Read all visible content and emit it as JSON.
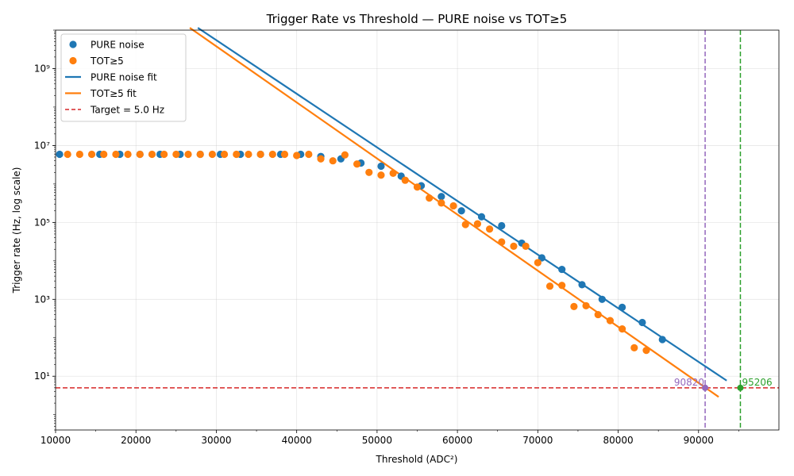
{
  "chart_data": {
    "type": "scatter",
    "title": "Trigger Rate vs Threshold — PURE noise vs TOT≥5",
    "xlabel": "Threshold (ADC²)",
    "ylabel": "Trigger rate (Hz, log scale)",
    "xlim": [
      10000,
      100000
    ],
    "ylim": [
      0.4,
      10000000000
    ],
    "yscale": "log",
    "grid": true,
    "legend_position": "top-left",
    "x_ticks": [
      10000,
      20000,
      30000,
      40000,
      50000,
      60000,
      70000,
      80000,
      90000
    ],
    "x_tick_labels": [
      "10000",
      "20000",
      "30000",
      "40000",
      "50000",
      "60000",
      "70000",
      "80000",
      "90000"
    ],
    "y_ticks": [
      10,
      1000,
      100000,
      10000000,
      1000000000
    ],
    "y_tick_labels": [
      "10¹",
      "10³",
      "10⁵",
      "10⁷",
      "10⁹"
    ],
    "series": [
      {
        "name": "PURE noise",
        "kind": "scatter",
        "color": "#1f77b4",
        "points": [
          [
            10500,
            5900000
          ],
          [
            15500,
            5900000
          ],
          [
            18000,
            5900000
          ],
          [
            20500,
            5900000
          ],
          [
            23000,
            5900000
          ],
          [
            25500,
            5900000
          ],
          [
            28000,
            5900000
          ],
          [
            30500,
            5900000
          ],
          [
            33000,
            5900000
          ],
          [
            35500,
            5900000
          ],
          [
            38000,
            5900000
          ],
          [
            40500,
            5900000
          ],
          [
            43000,
            5200000
          ],
          [
            45500,
            4500000
          ],
          [
            48000,
            3500000
          ],
          [
            50500,
            2900000
          ],
          [
            53000,
            1600000
          ],
          [
            55500,
            900000
          ],
          [
            58000,
            470000
          ],
          [
            60500,
            200000
          ],
          [
            63000,
            140000
          ],
          [
            65500,
            82000
          ],
          [
            68000,
            29000
          ],
          [
            70500,
            12000
          ],
          [
            73000,
            6000
          ],
          [
            75500,
            2400
          ],
          [
            78000,
            1000
          ],
          [
            80500,
            620
          ],
          [
            83000,
            250
          ],
          [
            85500,
            90
          ]
        ]
      },
      {
        "name": "TOT≥5",
        "kind": "scatter",
        "color": "#ff7f0e",
        "points": [
          [
            11500,
            5900000
          ],
          [
            13000,
            5900000
          ],
          [
            14500,
            5900000
          ],
          [
            16000,
            5900000
          ],
          [
            17500,
            5900000
          ],
          [
            19000,
            5900000
          ],
          [
            20500,
            5900000
          ],
          [
            22000,
            5900000
          ],
          [
            23500,
            5900000
          ],
          [
            25000,
            5900000
          ],
          [
            26500,
            5900000
          ],
          [
            28000,
            5900000
          ],
          [
            29500,
            5900000
          ],
          [
            31000,
            5900000
          ],
          [
            32500,
            5900000
          ],
          [
            34000,
            5900000
          ],
          [
            35500,
            5900000
          ],
          [
            37000,
            5900000
          ],
          [
            38500,
            5900000
          ],
          [
            40000,
            5500000
          ],
          [
            41500,
            5900000
          ],
          [
            43000,
            4500000
          ],
          [
            44500,
            4000000
          ],
          [
            46000,
            5700000
          ],
          [
            47500,
            3300000
          ],
          [
            49000,
            2000000
          ],
          [
            50500,
            1700000
          ],
          [
            52000,
            1900000
          ],
          [
            53500,
            1250000
          ],
          [
            55000,
            830000
          ],
          [
            56500,
            430000
          ],
          [
            58000,
            320000
          ],
          [
            59500,
            270000
          ],
          [
            61000,
            88000
          ],
          [
            62500,
            92000
          ],
          [
            64000,
            67000
          ],
          [
            65500,
            31000
          ],
          [
            67000,
            24000
          ],
          [
            68500,
            24000
          ],
          [
            70000,
            9000
          ],
          [
            71500,
            2200
          ],
          [
            73000,
            2300
          ],
          [
            74500,
            650
          ],
          [
            76000,
            680
          ],
          [
            77500,
            400
          ],
          [
            79000,
            280
          ],
          [
            80500,
            170
          ],
          [
            82000,
            55
          ],
          [
            83500,
            47
          ]
        ]
      },
      {
        "name": "PURE noise fit",
        "kind": "line",
        "color": "#1f77b4",
        "points": [
          [
            27700,
            11500000000
          ],
          [
            93500,
            7.7
          ]
        ]
      },
      {
        "name": "TOT≥5 fit",
        "kind": "line",
        "color": "#ff7f0e",
        "points": [
          [
            26700,
            11500000000
          ],
          [
            92500,
            2.9
          ]
        ]
      },
      {
        "name": "Target = 5.0 Hz",
        "kind": "hline",
        "color": "#d62728",
        "y": 5.0
      }
    ],
    "annotations": [
      {
        "label": "90820",
        "x": 90820,
        "y": 5.0,
        "color": "#9467bd",
        "marker_color": "#9467bd"
      },
      {
        "label": "95206",
        "x": 95206,
        "y": 5.0,
        "color": "#2ca02c",
        "marker_color": "#2ca02c"
      }
    ]
  }
}
